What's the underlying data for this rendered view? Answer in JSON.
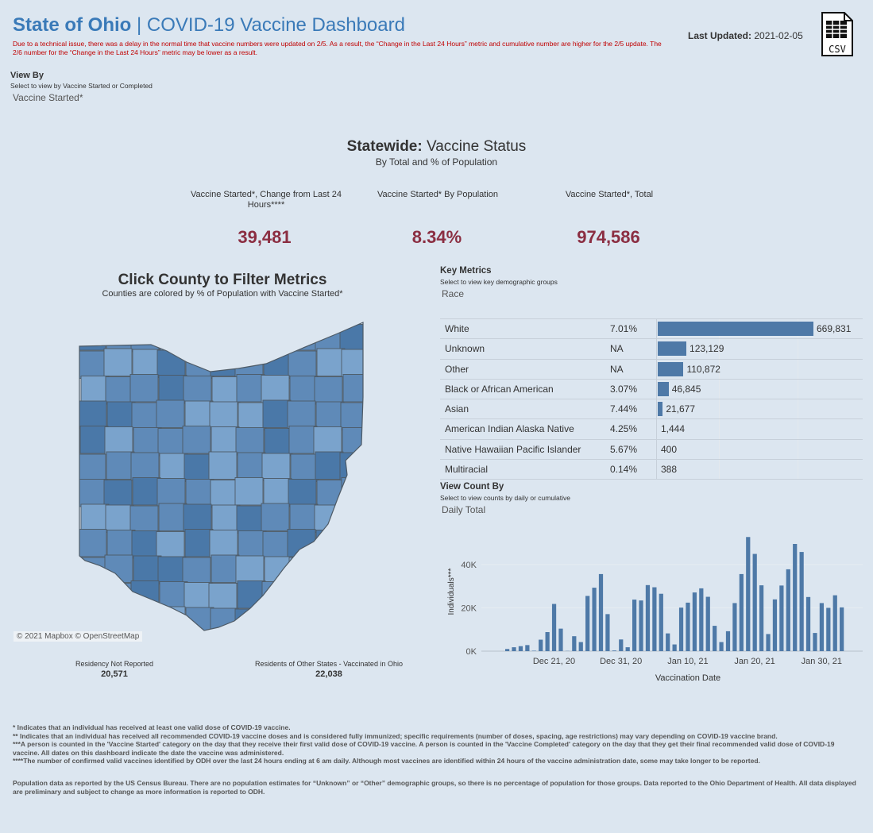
{
  "header": {
    "title_bold": "State of Ohio",
    "title_sep": " | ",
    "title_rest": "COVID-19 Vaccine Dashboard",
    "notice": "Due to a technical issue, there was a delay in the normal time that vaccine numbers were updated on 2/5. As a result, the “Change in the Last 24 Hours” metric and cumulative number are higher for the 2/5 update. The 2/6 number for the “Change in the Last 24 Hours” metric may be lower as a result.",
    "updated_label": "Last Updated:",
    "updated_value": "2021-02-05",
    "csv_label": "CSV",
    "csv_icon": "spreadsheet-csv-icon"
  },
  "view_by": {
    "title": "View By",
    "subtitle": "Select to view by Vaccine Started or Completed",
    "value": "Vaccine Started*"
  },
  "statewide": {
    "title_bold": "Statewide:",
    "title_rest": " Vaccine Status",
    "subtitle": "By Total and % of Population",
    "kpis": [
      {
        "label": "Vaccine Started*, Change from Last 24 Hours****",
        "value": "39,481"
      },
      {
        "label": "Vaccine Started* By Population",
        "value": "8.34%"
      },
      {
        "label": "Vaccine Started*, Total",
        "value": "974,586"
      }
    ]
  },
  "map": {
    "title": "Click County to Filter Metrics",
    "subtitle": "Counties are colored by % of Population with Vaccine Started*",
    "attribution": "© 2021 Mapbox © OpenStreetMap",
    "residency_not_reported_label": "Residency Not Reported",
    "residency_not_reported_value": "20,571",
    "other_states_label": "Residents of Other States - Vaccinated in Ohio",
    "other_states_value": "22,038",
    "colors": {
      "dark": "#4a78a8",
      "mid": "#5f8ab8",
      "light": "#7aa3cc",
      "border": "#4d5a66"
    }
  },
  "key_metrics": {
    "title": "Key Metrics",
    "subtitle": "Select to view key demographic groups",
    "value": "Race",
    "bar_color": "#4e79a7",
    "rows": [
      {
        "name": "White",
        "pct": "7.01%",
        "count": 669831,
        "count_label": "669,831"
      },
      {
        "name": "Unknown",
        "pct": "NA",
        "count": 123129,
        "count_label": "123,129"
      },
      {
        "name": "Other",
        "pct": "NA",
        "count": 110872,
        "count_label": "110,872"
      },
      {
        "name": "Black or African American",
        "pct": "3.07%",
        "count": 46845,
        "count_label": "46,845"
      },
      {
        "name": "Asian",
        "pct": "7.44%",
        "count": 21677,
        "count_label": "21,677"
      },
      {
        "name": "American Indian Alaska Native",
        "pct": "4.25%",
        "count": 1444,
        "count_label": "1,444"
      },
      {
        "name": "Native Hawaiian Pacific Islander",
        "pct": "5.67%",
        "count": 400,
        "count_label": "400"
      },
      {
        "name": "Multiracial",
        "pct": "0.14%",
        "count": 388,
        "count_label": "388"
      }
    ]
  },
  "view_count": {
    "title": "View Count By",
    "subtitle": "Select to view counts by daily or cumulative",
    "value": "Daily Total"
  },
  "chart_data": {
    "type": "bar",
    "title": "",
    "xlabel": "Vaccination Date",
    "ylabel": "Individuals***",
    "ylim": [
      0,
      55000
    ],
    "y_ticks": [
      0,
      20000,
      40000
    ],
    "y_tick_labels": [
      "0K",
      "20K",
      "40K"
    ],
    "x_tick_indices": [
      7,
      17,
      27,
      37,
      47
    ],
    "x_tick_labels": [
      "Dec 21, 20",
      "Dec 31, 20",
      "Jan 10, 21",
      "Jan 20, 21",
      "Jan 30, 21"
    ],
    "categories": [
      "Dec 14",
      "Dec 15",
      "Dec 16",
      "Dec 17",
      "Dec 18",
      "Dec 19",
      "Dec 20",
      "Dec 21",
      "Dec 22",
      "Dec 23",
      "Dec 24",
      "Dec 25",
      "Dec 26",
      "Dec 27",
      "Dec 28",
      "Dec 29",
      "Dec 30",
      "Dec 31",
      "Jan 1",
      "Jan 2",
      "Jan 3",
      "Jan 4",
      "Jan 5",
      "Jan 6",
      "Jan 7",
      "Jan 8",
      "Jan 9",
      "Jan 10",
      "Jan 11",
      "Jan 12",
      "Jan 13",
      "Jan 14",
      "Jan 15",
      "Jan 16",
      "Jan 17",
      "Jan 18",
      "Jan 19",
      "Jan 20",
      "Jan 21",
      "Jan 22",
      "Jan 23",
      "Jan 24",
      "Jan 25",
      "Jan 26",
      "Jan 27",
      "Jan 28",
      "Jan 29",
      "Jan 30",
      "Jan 31",
      "Feb 1",
      "Feb 2",
      "Feb 3",
      "Feb 4",
      "Feb 5"
    ],
    "values": [
      1000,
      1800,
      2300,
      2800,
      200,
      5300,
      8800,
      21800,
      10400,
      100,
      6900,
      4200,
      25500,
      29300,
      35600,
      17100,
      300,
      5400,
      1800,
      23800,
      23400,
      30500,
      29500,
      26500,
      8200,
      3100,
      20100,
      22400,
      27100,
      29000,
      25100,
      11700,
      4200,
      9200,
      22200,
      35600,
      52700,
      44900,
      30400,
      7900,
      23900,
      30300,
      37800,
      49500,
      45800,
      25000,
      8400,
      22200,
      20000,
      25800,
      20200,
      0,
      0,
      0
    ],
    "bar_color": "#4e79a7"
  },
  "footnotes": [
    "* Indicates that an individual has received at least one valid dose of COVID-19 vaccine.",
    "** Indicates that an individual has received all recommended COVID-19 vaccine doses and is considered fully immunized; specific requirements (number of doses, spacing, age restrictions) may vary depending on COVID-19 vaccine brand.",
    "***A person is counted in the 'Vaccine Started' category on the day that they receive their first valid dose of COVID-19 vaccine.  A person is counted in the 'Vaccine Completed' category on the day that they get their final recommended valid dose of COVID-19 vaccine. All dates on this dashboard indicate the date the vaccine was administered.",
    "****The number of confirmed valid vaccines identified by ODH over the last 24 hours ending at 6 am daily. Although most vaccines are identified within 24 hours of the vaccine administration date, some may take longer to be reported."
  ],
  "population_note": "Population data as reported by the US Census Bureau. There are no population estimates for “Unknown” or “Other” demographic groups, so there is no percentage of population for those groups.  Data reported to the Ohio Department of Health.  All data displayed are preliminary and subject to change as more information is reported to ODH."
}
